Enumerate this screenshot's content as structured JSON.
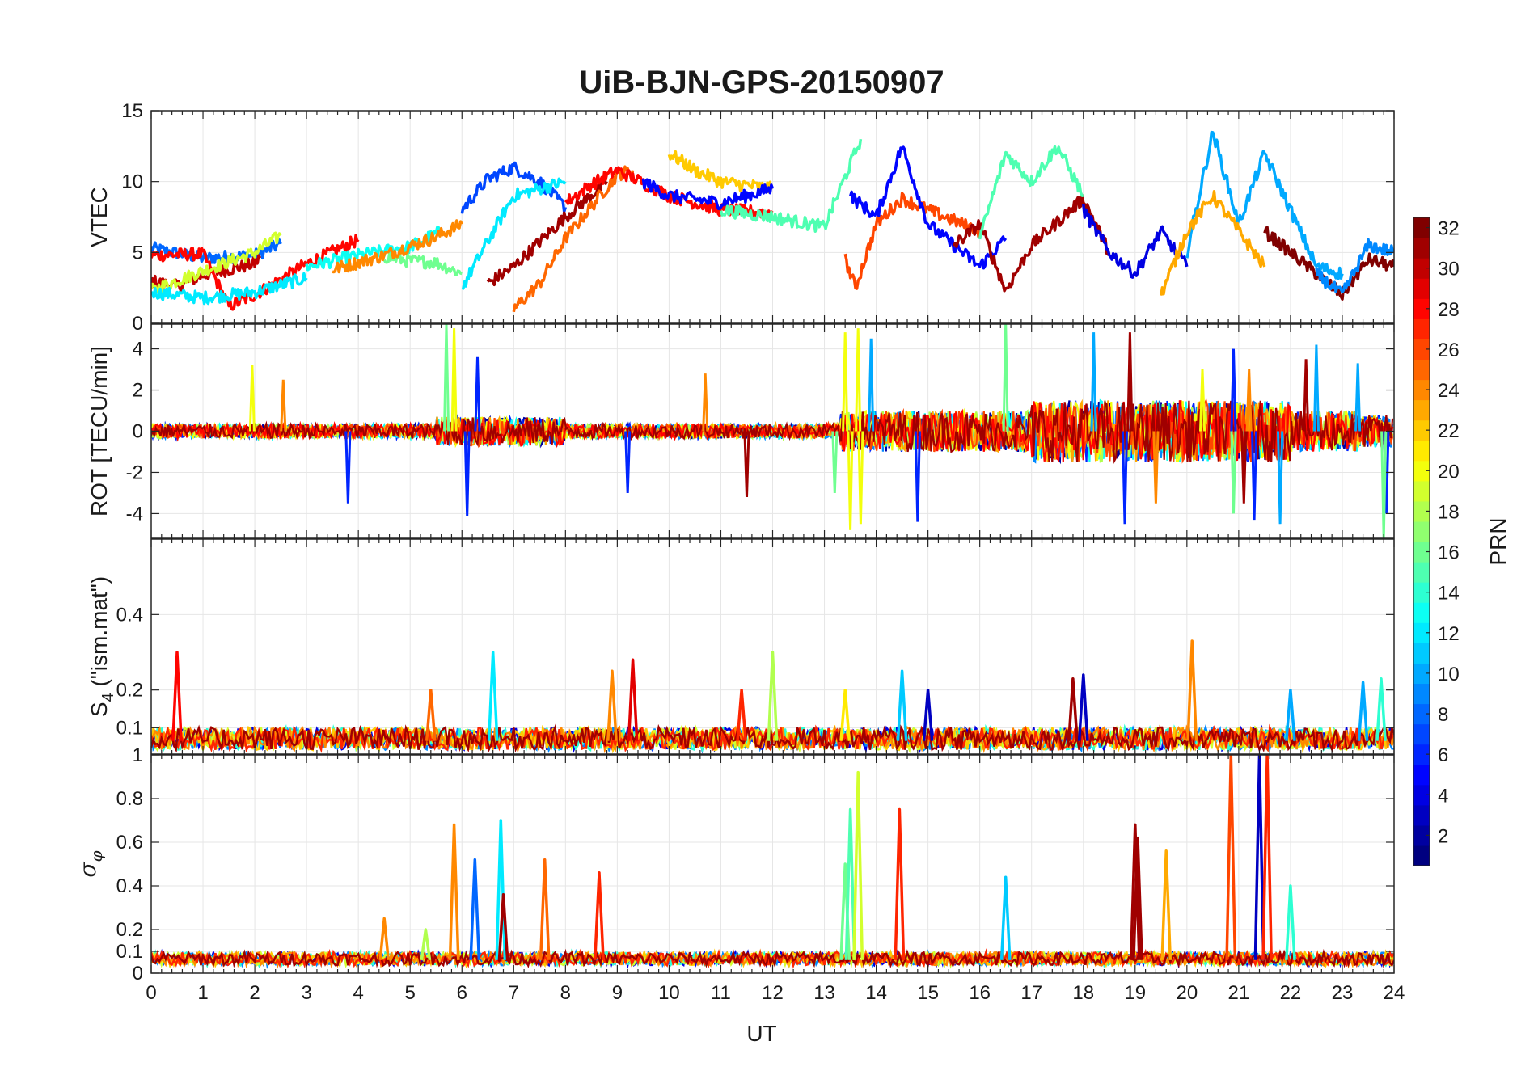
{
  "chart_data": {
    "type": "line",
    "title": "UiB-BJN-GPS-20150907",
    "xlabel": "UT",
    "xlim": [
      0,
      24
    ],
    "x_ticks": [
      0,
      1,
      2,
      3,
      4,
      5,
      6,
      7,
      8,
      9,
      10,
      11,
      12,
      13,
      14,
      15,
      16,
      17,
      18,
      19,
      20,
      21,
      22,
      23,
      24
    ],
    "colormap": "jet",
    "colorbar": {
      "label": "PRN",
      "range": [
        1,
        32
      ],
      "ticks": [
        2,
        4,
        6,
        8,
        10,
        12,
        14,
        16,
        18,
        20,
        22,
        24,
        26,
        28,
        30,
        32
      ]
    },
    "panels": [
      {
        "ylabel": "VTEC",
        "ylim": [
          0,
          15
        ],
        "yticks": [
          0,
          5,
          10,
          15
        ],
        "series": [
          {
            "prn": 8,
            "x": [
              0,
              1,
              2,
              2.5
            ],
            "y": [
              5.3,
              4.6,
              4.8,
              5.6
            ]
          },
          {
            "prn": 30,
            "x": [
              0,
              0.5,
              1,
              2,
              2.1
            ],
            "y": [
              3.0,
              2.6,
              3.4,
              4.2,
              4.6
            ]
          },
          {
            "prn": 28,
            "x": [
              0,
              1,
              1.5,
              2,
              3,
              4
            ],
            "y": [
              4.8,
              4.9,
              1.2,
              2.0,
              4.2,
              5.9
            ]
          },
          {
            "prn": 19,
            "x": [
              0,
              1,
              2,
              2.5
            ],
            "y": [
              2.3,
              3.7,
              5.0,
              6.2
            ]
          },
          {
            "prn": 12,
            "x": [
              0,
              1,
              2,
              3
            ],
            "y": [
              2.2,
              1.8,
              2.2,
              3.2
            ]
          },
          {
            "prn": 13,
            "x": [
              3,
              4,
              5,
              5.6
            ],
            "y": [
              4.0,
              4.8,
              5.4,
              6.5
            ]
          },
          {
            "prn": 16,
            "x": [
              4.5,
              5,
              5.5,
              6
            ],
            "y": [
              4.7,
              4.4,
              4.3,
              3.5
            ]
          },
          {
            "prn": 24,
            "x": [
              3.5,
              4.5,
              5.5,
              6
            ],
            "y": [
              3.8,
              4.8,
              6.1,
              7.0
            ]
          },
          {
            "prn": 7,
            "x": [
              6,
              6.5,
              7,
              7.5,
              8
            ],
            "y": [
              8.0,
              10.2,
              11.0,
              10.0,
              8.2
            ]
          },
          {
            "prn": 12,
            "x": [
              6,
              6.5,
              7,
              8
            ],
            "y": [
              2.5,
              5.8,
              9.0,
              10.0
            ]
          },
          {
            "prn": 31,
            "x": [
              6.5,
              7,
              8,
              8.8
            ],
            "y": [
              2.8,
              4.0,
              7.5,
              10.0
            ]
          },
          {
            "prn": 25,
            "x": [
              7,
              7.5,
              8,
              9,
              9.3
            ],
            "y": [
              1.0,
              2.8,
              6.0,
              10.5,
              10.8
            ]
          },
          {
            "prn": 28,
            "x": [
              8,
              8.5,
              9,
              10,
              11,
              12
            ],
            "y": [
              8.5,
              9.8,
              10.8,
              9.0,
              8.0,
              7.8
            ]
          },
          {
            "prn": 22,
            "x": [
              10,
              10.5,
              11,
              12
            ],
            "y": [
              12.0,
              10.8,
              10.0,
              9.5
            ]
          },
          {
            "prn": 5,
            "x": [
              9.5,
              10,
              11,
              12
            ],
            "y": [
              10.0,
              9.0,
              8.5,
              9.5
            ]
          },
          {
            "prn": 15,
            "x": [
              11,
              12,
              13,
              13.7
            ],
            "y": [
              8.0,
              7.5,
              6.8,
              13.0
            ]
          },
          {
            "prn": 26,
            "x": [
              13.4,
              13.6,
              14,
              14.5,
              15,
              16
            ],
            "y": [
              4.5,
              2.5,
              7.0,
              8.8,
              8.0,
              6.5
            ]
          },
          {
            "prn": 5,
            "x": [
              13.5,
              14,
              14.5,
              15,
              16,
              16.5
            ],
            "y": [
              9.0,
              7.5,
              12.5,
              7.0,
              4.0,
              6.0
            ]
          },
          {
            "prn": 31,
            "x": [
              15.5,
              16,
              16.5,
              17,
              18,
              18.5
            ],
            "y": [
              5.5,
              7.0,
              2.3,
              5.5,
              8.8,
              5.0
            ]
          },
          {
            "prn": 15,
            "x": [
              16,
              16.5,
              17,
              17.5,
              18
            ],
            "y": [
              6.0,
              12.0,
              10.0,
              12.5,
              9.0
            ]
          },
          {
            "prn": 4,
            "x": [
              18,
              18.5,
              19,
              19.5,
              20
            ],
            "y": [
              8.0,
              5.0,
              3.5,
              6.5,
              4.0
            ]
          },
          {
            "prn": 10,
            "x": [
              20,
              20.5,
              21,
              21.5,
              22,
              22.5,
              23
            ],
            "y": [
              5.0,
              13.5,
              7.0,
              12.0,
              8.0,
              4.0,
              3.5
            ]
          },
          {
            "prn": 23,
            "x": [
              19.5,
              20,
              20.5,
              21,
              21.5
            ],
            "y": [
              2.0,
              6.5,
              9.0,
              6.5,
              4.0
            ]
          },
          {
            "prn": 32,
            "x": [
              21.5,
              22,
              22.5,
              23,
              23.5,
              24
            ],
            "y": [
              6.5,
              5.0,
              3.5,
              2.0,
              4.5,
              4.0
            ]
          },
          {
            "prn": 9,
            "x": [
              22.5,
              23,
              23.5,
              24
            ],
            "y": [
              3.5,
              2.0,
              5.5,
              5.0
            ]
          }
        ]
      },
      {
        "ylabel": "ROT [TECU/min]",
        "ylim": [
          -5.2,
          5.2
        ],
        "yticks": [
          -4,
          -2,
          0,
          2,
          4
        ],
        "spikes": [
          {
            "prn": 20,
            "x": [
              1.95,
              5.85,
              13.4,
              13.5,
              13.65,
              13.7,
              20.3
            ],
            "y": [
              3.2,
              5.0,
              4.8,
              -4.8,
              5.0,
              -4.5,
              3.0
            ]
          },
          {
            "prn": 6,
            "x": [
              3.8,
              6.1,
              6.3,
              9.2,
              14.8,
              18.8,
              20.9,
              21.3,
              23.85
            ],
            "y": [
              -3.5,
              -4.1,
              3.6,
              -3.0,
              -4.4,
              -4.5,
              4.0,
              -4.3,
              -4.0
            ]
          },
          {
            "prn": 16,
            "x": [
              5.7,
              13.2,
              16.5,
              20.9,
              23.8
            ],
            "y": [
              5.2,
              -3.0,
              5.3,
              -4.0,
              -5.2
            ]
          },
          {
            "prn": 10,
            "x": [
              13.9,
              18.2,
              21.8,
              22.5,
              23.3
            ],
            "y": [
              4.5,
              4.8,
              -4.5,
              4.2,
              3.3
            ]
          },
          {
            "prn": 31,
            "x": [
              11.5,
              18.9,
              21.1,
              22.3
            ],
            "y": [
              -3.2,
              4.8,
              -3.5,
              3.5
            ]
          },
          {
            "prn": 24,
            "x": [
              2.55,
              10.7,
              19.4,
              21.2
            ],
            "y": [
              2.5,
              2.8,
              -3.5,
              3.0
            ]
          }
        ]
      },
      {
        "ylabel": "S4 (\"ism.mat\")",
        "ylabel_main": "S",
        "ylabel_sub": "4",
        "ylabel_rest": " (\"ism.mat\")",
        "ylim": [
          0.03,
          0.6
        ],
        "yticks": [
          0.1,
          0.2,
          0.4
        ],
        "peaks": [
          {
            "prn": 28,
            "x": 0.5,
            "y": 0.3
          },
          {
            "prn": 25,
            "x": 5.4,
            "y": 0.2
          },
          {
            "prn": 12,
            "x": 6.6,
            "y": 0.3
          },
          {
            "prn": 24,
            "x": 8.9,
            "y": 0.25
          },
          {
            "prn": 29,
            "x": 9.3,
            "y": 0.28
          },
          {
            "prn": 27,
            "x": 11.4,
            "y": 0.2
          },
          {
            "prn": 18,
            "x": 12.0,
            "y": 0.3
          },
          {
            "prn": 21,
            "x": 13.4,
            "y": 0.2
          },
          {
            "prn": 11,
            "x": 14.5,
            "y": 0.25
          },
          {
            "prn": 3,
            "x": 15.0,
            "y": 0.2
          },
          {
            "prn": 31,
            "x": 17.8,
            "y": 0.23
          },
          {
            "prn": 3,
            "x": 18.0,
            "y": 0.24
          },
          {
            "prn": 24,
            "x": 20.1,
            "y": 0.33
          },
          {
            "prn": 10,
            "x": 22.0,
            "y": 0.2
          },
          {
            "prn": 10,
            "x": 23.4,
            "y": 0.22
          },
          {
            "prn": 14,
            "x": 23.75,
            "y": 0.23
          }
        ]
      },
      {
        "ylabel": "σφ",
        "ylabel_sym": "σ",
        "ylabel_sub": "φ",
        "ylim": [
          0,
          1
        ],
        "yticks": [
          0,
          0.1,
          0.2,
          0.4,
          0.6,
          0.8,
          1
        ],
        "peaks": [
          {
            "prn": 24,
            "x": 4.5,
            "y": 0.25
          },
          {
            "prn": 18,
            "x": 5.3,
            "y": 0.2
          },
          {
            "prn": 24,
            "x": 5.85,
            "y": 0.68
          },
          {
            "prn": 8,
            "x": 6.25,
            "y": 0.52
          },
          {
            "prn": 12,
            "x": 6.75,
            "y": 0.7
          },
          {
            "prn": 31,
            "x": 6.8,
            "y": 0.36
          },
          {
            "prn": 25,
            "x": 7.6,
            "y": 0.52
          },
          {
            "prn": 27,
            "x": 8.65,
            "y": 0.46
          },
          {
            "prn": 16,
            "x": 13.4,
            "y": 0.5
          },
          {
            "prn": 15,
            "x": 13.5,
            "y": 0.75
          },
          {
            "prn": 19,
            "x": 13.65,
            "y": 0.92
          },
          {
            "prn": 27,
            "x": 14.45,
            "y": 0.75
          },
          {
            "prn": 11,
            "x": 16.5,
            "y": 0.44
          },
          {
            "prn": 31,
            "x": 19.0,
            "y": 0.68
          },
          {
            "prn": 23,
            "x": 19.6,
            "y": 0.56
          },
          {
            "prn": 26,
            "x": 20.85,
            "y": 1.0
          },
          {
            "prn": 3,
            "x": 21.4,
            "y": 1.0
          },
          {
            "prn": 27,
            "x": 21.55,
            "y": 1.0
          },
          {
            "prn": 14,
            "x": 22.0,
            "y": 0.4
          },
          {
            "prn": 31,
            "x": 19.05,
            "y": 0.62
          }
        ]
      }
    ]
  }
}
